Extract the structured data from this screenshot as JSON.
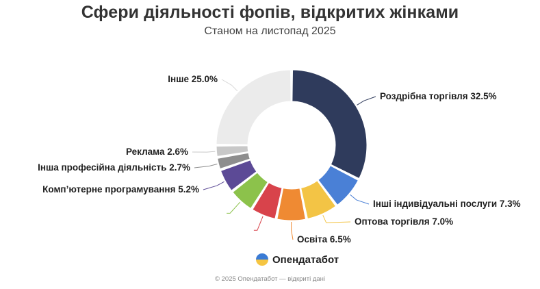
{
  "header": {
    "title": "Сфери діяльності фопів, відкритих жінками",
    "subtitle": "Станом на листопад 2025"
  },
  "brand": {
    "name": "Опендатабот",
    "logo_icon": "opendatabot-logo-icon",
    "logo_colors": [
      "#3a7bd5",
      "#f5c542"
    ]
  },
  "footer": {
    "text": "© 2025 Опендатабот — відкриті дані"
  },
  "chart_data": {
    "type": "pie",
    "donut": true,
    "unit": "%",
    "slices": [
      {
        "label": "Роздрібна торгівля 32.5%",
        "value": 32.5,
        "color": "#2f3b5c",
        "show_label": true
      },
      {
        "label": "Інші індивідуальні послуги 7.3%",
        "value": 7.3,
        "color": "#4a80d6",
        "show_label": true
      },
      {
        "label": "Оптова торгівля 7.0%",
        "value": 7.0,
        "color": "#f3c445",
        "show_label": true
      },
      {
        "label": "Освіта 6.5%",
        "value": 6.5,
        "color": "#ef8a33",
        "show_label": true
      },
      {
        "label": "",
        "value": 5.6,
        "color": "#d8434b",
        "show_label": false
      },
      {
        "label": "",
        "value": 5.6,
        "color": "#8cc24b",
        "show_label": false
      },
      {
        "label": "Комп’ютерне програмування 5.2%",
        "value": 5.2,
        "color": "#5c4a96",
        "show_label": true
      },
      {
        "label": "Інша професійна діяльність 2.7%",
        "value": 2.7,
        "color": "#8e8e8e",
        "show_label": true
      },
      {
        "label": "Реклама 2.6%",
        "value": 2.6,
        "color": "#c8c8c8",
        "show_label": true
      },
      {
        "label": "Інше 25.0%",
        "value": 25.0,
        "color": "#ebebeb",
        "show_label": true
      }
    ]
  }
}
